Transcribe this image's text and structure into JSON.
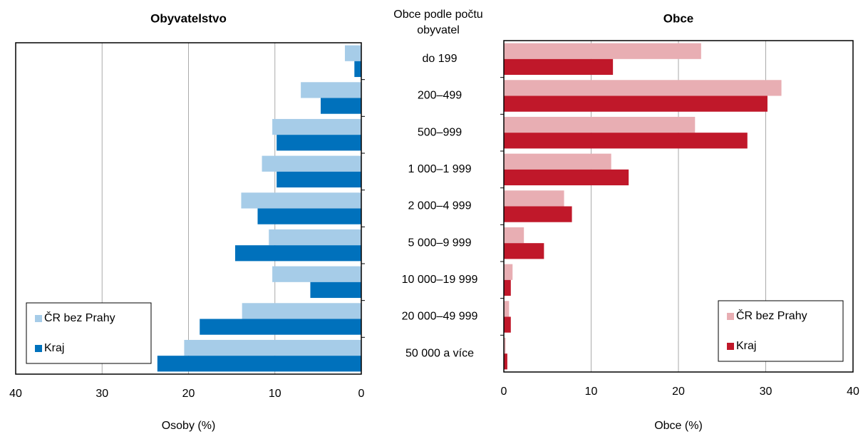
{
  "chart_data": [
    {
      "type": "bar",
      "orientation": "horizontal",
      "title": "Obyvatelstvo",
      "x_label": "Osoby (%)",
      "category_title": "Obce podle počtu obyvatel",
      "categories": [
        "do 199",
        "200–499",
        "500–999",
        "1 000–1 999",
        "2 000–4 999",
        "5 000–9 999",
        "10 000–19 999",
        "20 000–49 999",
        "50 000 a více"
      ],
      "series": [
        {
          "name": "ČR bez Prahy",
          "color": "#a6cce8",
          "values": [
            1.9,
            7.0,
            10.3,
            11.5,
            13.9,
            10.7,
            10.3,
            13.8,
            20.5
          ]
        },
        {
          "name": "Kraj",
          "color": "#0071bc",
          "values": [
            0.8,
            4.7,
            9.8,
            9.8,
            12.0,
            14.6,
            5.9,
            18.7,
            23.6
          ]
        }
      ],
      "xlim": [
        40,
        0
      ],
      "xticks": [
        40,
        30,
        20,
        10,
        0
      ],
      "grid": true,
      "legend": "lower left"
    },
    {
      "type": "bar",
      "orientation": "horizontal",
      "title": "Obce",
      "x_label": "Obce (%)",
      "series": [
        {
          "name": "ČR bez Prahy",
          "color": "#e8aeb3",
          "values": [
            22.6,
            31.8,
            21.9,
            12.3,
            6.9,
            2.3,
            1.0,
            0.6,
            0.2
          ]
        },
        {
          "name": "Kraj",
          "color": "#c0182a",
          "values": [
            12.5,
            30.2,
            27.9,
            14.3,
            7.8,
            4.6,
            0.8,
            0.8,
            0.4
          ]
        }
      ],
      "xlim": [
        0,
        40
      ],
      "xticks": [
        0,
        10,
        20,
        30,
        40
      ],
      "grid": true,
      "legend": "lower right"
    }
  ]
}
